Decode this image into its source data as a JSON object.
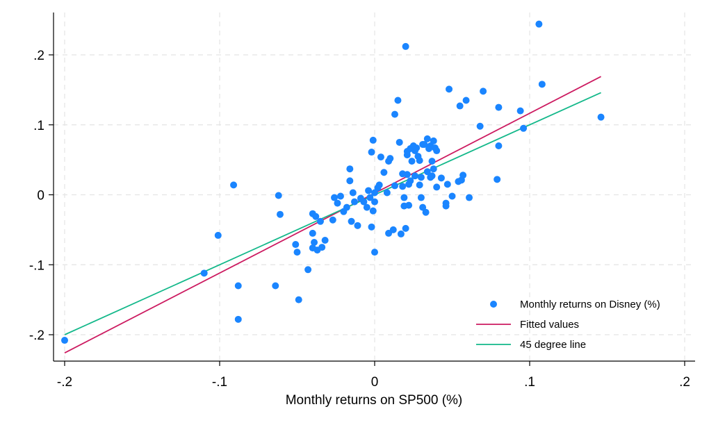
{
  "chart_data": {
    "type": "scatter",
    "title": "",
    "xlabel": "Monthly returns on SP500 (%)",
    "ylabel": "",
    "xlim": [
      -0.2,
      0.2
    ],
    "ylim": [
      -0.24,
      0.255
    ],
    "xticks": [
      -0.2,
      -0.1,
      0,
      0.1,
      0.2
    ],
    "xtick_labels": [
      "-.2",
      "-.1",
      "0",
      ".1",
      ".2"
    ],
    "yticks": [
      -0.2,
      -0.1,
      0,
      0.1,
      0.2
    ],
    "ytick_labels": [
      "-.2",
      "-.1",
      "0",
      ".1",
      ".2"
    ],
    "grid": true,
    "legend_position": "bottom-right",
    "series": [
      {
        "name": "Monthly returns on Disney (%)",
        "type": "scatter",
        "color": "#1a85ff",
        "points": [
          [
            -0.2,
            -0.208
          ],
          [
            -0.11,
            -0.112
          ],
          [
            -0.101,
            -0.058
          ],
          [
            -0.091,
            0.014
          ],
          [
            -0.088,
            -0.13
          ],
          [
            -0.088,
            -0.178
          ],
          [
            -0.064,
            -0.13
          ],
          [
            -0.062,
            -0.001
          ],
          [
            -0.061,
            -0.028
          ],
          [
            -0.051,
            -0.071
          ],
          [
            -0.05,
            -0.082
          ],
          [
            -0.049,
            -0.15
          ],
          [
            -0.043,
            -0.107
          ],
          [
            -0.04,
            -0.027
          ],
          [
            -0.04,
            -0.055
          ],
          [
            -0.04,
            -0.076
          ],
          [
            -0.039,
            -0.068
          ],
          [
            -0.038,
            -0.031
          ],
          [
            -0.037,
            -0.079
          ],
          [
            -0.035,
            -0.038
          ],
          [
            -0.034,
            -0.075
          ],
          [
            -0.032,
            -0.065
          ],
          [
            -0.027,
            -0.036
          ],
          [
            -0.026,
            -0.004
          ],
          [
            -0.024,
            -0.012
          ],
          [
            -0.022,
            -0.002
          ],
          [
            -0.02,
            -0.024
          ],
          [
            -0.018,
            -0.018
          ],
          [
            -0.016,
            0.037
          ],
          [
            -0.016,
            0.02
          ],
          [
            -0.015,
            -0.038
          ],
          [
            -0.014,
            0.003
          ],
          [
            -0.013,
            -0.01
          ],
          [
            -0.011,
            -0.044
          ],
          [
            -0.009,
            -0.005
          ],
          [
            -0.007,
            -0.01
          ],
          [
            -0.005,
            -0.018
          ],
          [
            -0.004,
            0.006
          ],
          [
            -0.003,
            -0.004
          ],
          [
            -0.002,
            0.061
          ],
          [
            -0.002,
            -0.046
          ],
          [
            -0.001,
            0.078
          ],
          [
            -0.001,
            -0.023
          ],
          [
            0.0,
            0.003
          ],
          [
            0.0,
            -0.01
          ],
          [
            0.0,
            -0.082
          ],
          [
            0.002,
            0.01
          ],
          [
            0.003,
            0.014
          ],
          [
            0.004,
            0.054
          ],
          [
            0.006,
            0.032
          ],
          [
            0.008,
            0.003
          ],
          [
            0.009,
            -0.055
          ],
          [
            0.009,
            0.048
          ],
          [
            0.01,
            0.052
          ],
          [
            0.012,
            -0.05
          ],
          [
            0.013,
            0.013
          ],
          [
            0.013,
            0.115
          ],
          [
            0.015,
            0.135
          ],
          [
            0.016,
            0.075
          ],
          [
            0.017,
            -0.056
          ],
          [
            0.018,
            0.03
          ],
          [
            0.018,
            0.012
          ],
          [
            0.019,
            -0.004
          ],
          [
            0.019,
            -0.016
          ],
          [
            0.02,
            -0.048
          ],
          [
            0.02,
            0.212
          ],
          [
            0.021,
            0.062
          ],
          [
            0.021,
            0.057
          ],
          [
            0.021,
            0.029
          ],
          [
            0.022,
            -0.015
          ],
          [
            0.022,
            0.015
          ],
          [
            0.023,
            0.066
          ],
          [
            0.023,
            0.02
          ],
          [
            0.024,
            0.048
          ],
          [
            0.025,
            0.07
          ],
          [
            0.026,
            0.063
          ],
          [
            0.026,
            0.027
          ],
          [
            0.027,
            0.067
          ],
          [
            0.028,
            0.055
          ],
          [
            0.029,
            0.049
          ],
          [
            0.029,
            0.014
          ],
          [
            0.03,
            -0.004
          ],
          [
            0.03,
            0.025
          ],
          [
            0.031,
            -0.018
          ],
          [
            0.031,
            0.072
          ],
          [
            0.032,
            0.072
          ],
          [
            0.033,
            -0.025
          ],
          [
            0.034,
            0.033
          ],
          [
            0.034,
            0.08
          ],
          [
            0.035,
            0.066
          ],
          [
            0.036,
            0.07
          ],
          [
            0.036,
            0.025
          ],
          [
            0.037,
            0.027
          ],
          [
            0.037,
            0.048
          ],
          [
            0.038,
            0.037
          ],
          [
            0.038,
            0.077
          ],
          [
            0.039,
            0.067
          ],
          [
            0.04,
            0.063
          ],
          [
            0.04,
            0.011
          ],
          [
            0.043,
            0.024
          ],
          [
            0.046,
            -0.016
          ],
          [
            0.046,
            -0.012
          ],
          [
            0.047,
            0.015
          ],
          [
            0.048,
            0.151
          ],
          [
            0.05,
            -0.002
          ],
          [
            0.054,
            0.019
          ],
          [
            0.055,
            0.127
          ],
          [
            0.056,
            0.021
          ],
          [
            0.057,
            0.028
          ],
          [
            0.059,
            0.135
          ],
          [
            0.061,
            -0.004
          ],
          [
            0.068,
            0.098
          ],
          [
            0.07,
            0.148
          ],
          [
            0.079,
            0.022
          ],
          [
            0.08,
            0.125
          ],
          [
            0.08,
            0.07
          ],
          [
            0.094,
            0.12
          ],
          [
            0.096,
            0.095
          ],
          [
            0.106,
            0.244
          ],
          [
            0.108,
            0.158
          ],
          [
            0.146,
            0.111
          ]
        ]
      },
      {
        "name": "Fitted values",
        "type": "line",
        "color": "#cc1a60",
        "points": [
          [
            -0.2,
            -0.226
          ],
          [
            0.146,
            0.169
          ]
        ]
      },
      {
        "name": "45 degree line",
        "type": "line",
        "color": "#13b88a",
        "points": [
          [
            -0.2,
            -0.2
          ],
          [
            0.146,
            0.146
          ]
        ]
      }
    ]
  }
}
